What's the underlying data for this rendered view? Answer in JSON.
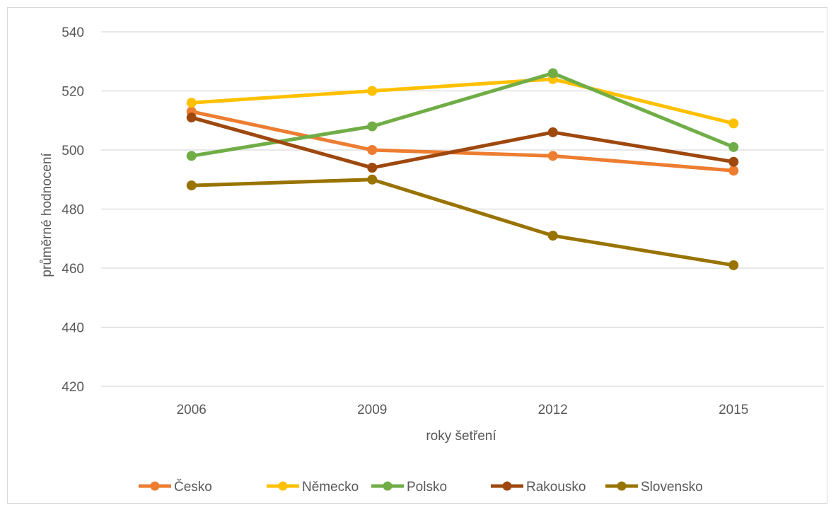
{
  "chart_data": {
    "type": "line",
    "xlabel": "roky šetření",
    "ylabel": "průměrné hodnocení",
    "categories": [
      "2006",
      "2009",
      "2012",
      "2015"
    ],
    "ylim": [
      420,
      540
    ],
    "yticks": [
      420,
      440,
      460,
      480,
      500,
      520,
      540
    ],
    "grid": true,
    "legend_position": "bottom",
    "series": [
      {
        "name": "Česko",
        "color": "#ED7D31",
        "values": [
          513,
          500,
          498,
          493
        ]
      },
      {
        "name": "Německo",
        "color": "#FFC000",
        "values": [
          516,
          520,
          524,
          509
        ]
      },
      {
        "name": "Polsko",
        "color": "#70AD47",
        "values": [
          498,
          508,
          526,
          501
        ]
      },
      {
        "name": "Rakousko",
        "color": "#9E480E",
        "values": [
          511,
          494,
          506,
          496
        ]
      },
      {
        "name": "Slovensko",
        "color": "#997300",
        "values": [
          488,
          490,
          471,
          461
        ]
      }
    ]
  }
}
